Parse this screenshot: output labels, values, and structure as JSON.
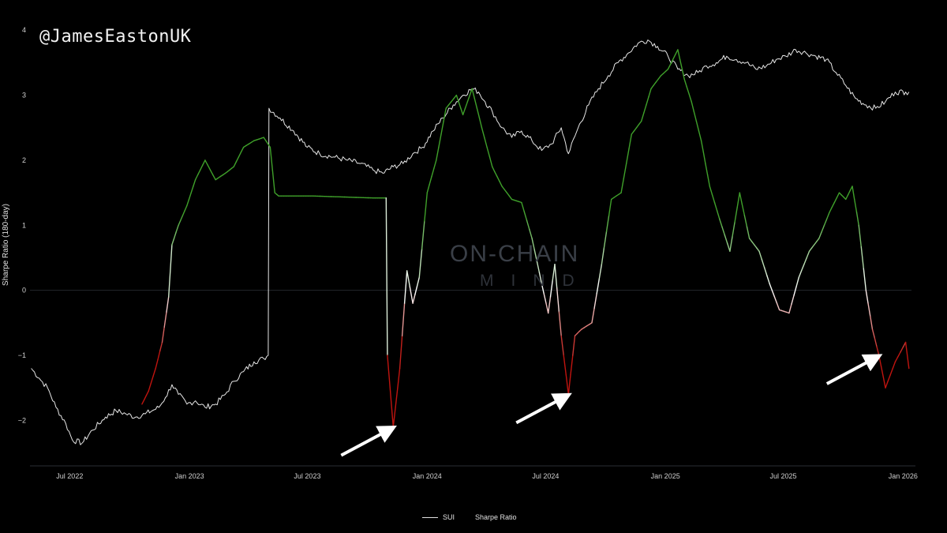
{
  "watermark": {
    "handle": "@JamesEastonUK",
    "brand_title": "ON-CHAIN",
    "brand_subtitle": "MIND"
  },
  "chart_data": {
    "type": "line",
    "title": "",
    "xlabel": "",
    "ylabel": "Sharpe Ratio (180-day)",
    "ylim": [
      -2.7,
      4.1
    ],
    "y_ticks": [
      4,
      3,
      2,
      1,
      0,
      -1,
      -2
    ],
    "x_ticks": [
      "Jul 2022",
      "Jan 2023",
      "Jul 2023",
      "Jan 2024",
      "Jul 2024",
      "Jan 2025",
      "Jul 2025",
      "Jan 2026"
    ],
    "grid": false,
    "legend_position": "bottom",
    "colors": {
      "background": "#000000",
      "sui": "#e6e6e6",
      "positive": "#3fa02a",
      "neutral": "#ffffff",
      "negative": "#c0140f",
      "arrow": "#ffffff"
    },
    "series": [
      {
        "name": "SUI",
        "x": [
          "2022-05-03",
          "2022-05-15",
          "2022-05-28",
          "2022-06-10",
          "2022-06-25",
          "2022-07-05",
          "2022-07-20",
          "2022-08-05",
          "2022-08-25",
          "2022-09-10",
          "2022-09-25",
          "2022-10-10",
          "2022-10-25",
          "2022-11-05",
          "2022-11-15",
          "2022-11-25",
          "2022-12-05",
          "2022-12-15",
          "2022-12-28",
          "2023-01-10",
          "2023-01-25",
          "2023-02-10",
          "2023-02-25",
          "2023-03-10",
          "2023-03-25",
          "2023-04-10",
          "2023-04-25",
          "2023-05-02",
          "2023-05-03",
          "2023-05-20",
          "2023-06-10",
          "2023-07-01",
          "2023-07-20",
          "2023-08-10",
          "2023-09-01",
          "2023-09-20",
          "2023-10-10",
          "2023-10-25",
          "2023-11-10",
          "2023-11-25",
          "2023-12-10",
          "2023-12-25",
          "2024-01-10",
          "2024-01-25",
          "2024-02-10",
          "2024-02-25",
          "2024-03-10",
          "2024-03-20",
          "2024-03-30",
          "2024-04-10",
          "2024-04-25",
          "2024-05-10",
          "2024-05-25",
          "2024-06-10",
          "2024-06-25",
          "2024-07-10",
          "2024-07-25",
          "2024-08-05",
          "2024-08-20",
          "2024-09-05",
          "2024-09-20",
          "2024-10-05",
          "2024-10-20",
          "2024-11-05",
          "2024-11-20",
          "2024-12-05",
          "2024-12-20",
          "2025-01-05",
          "2025-01-20",
          "2025-02-05",
          "2025-02-20",
          "2025-03-05",
          "2025-03-20",
          "2025-04-05",
          "2025-04-20",
          "2025-05-05",
          "2025-05-20",
          "2025-06-05",
          "2025-06-20",
          "2025-07-05",
          "2025-07-20",
          "2025-08-05",
          "2025-08-20",
          "2025-09-05",
          "2025-09-20",
          "2025-10-05",
          "2025-10-20",
          "2025-11-05",
          "2025-11-20",
          "2025-12-05",
          "2025-12-20",
          "2026-01-05",
          "2026-01-10"
        ],
        "values": [
          -1.2,
          -1.35,
          -1.5,
          -1.8,
          -2.05,
          -2.3,
          -2.35,
          -2.15,
          -1.95,
          -1.85,
          -1.9,
          -1.95,
          -1.9,
          -1.85,
          -1.8,
          -1.65,
          -1.45,
          -1.6,
          -1.75,
          -1.7,
          -1.8,
          -1.75,
          -1.6,
          -1.4,
          -1.25,
          -1.1,
          -1.05,
          -1.0,
          2.8,
          2.65,
          2.45,
          2.2,
          2.1,
          2.05,
          2.0,
          1.95,
          1.85,
          1.8,
          1.9,
          1.95,
          2.1,
          2.2,
          2.45,
          2.65,
          2.85,
          3.0,
          3.1,
          3.05,
          2.9,
          2.75,
          2.5,
          2.35,
          2.45,
          2.3,
          2.15,
          2.25,
          2.5,
          2.1,
          2.5,
          2.85,
          3.1,
          3.3,
          3.5,
          3.65,
          3.8,
          3.85,
          3.75,
          3.6,
          3.4,
          3.3,
          3.35,
          3.45,
          3.5,
          3.6,
          3.55,
          3.5,
          3.4,
          3.45,
          3.55,
          3.6,
          3.7,
          3.65,
          3.6,
          3.55,
          3.35,
          3.15,
          2.95,
          2.85,
          2.8,
          2.9,
          3.05,
          3.05,
          3.05
        ]
      },
      {
        "name": "Sharpe Ratio",
        "x": [
          "2022-10-20",
          "2022-10-30",
          "2022-11-10",
          "2022-11-20",
          "2022-11-30",
          "2022-12-05",
          "2022-12-15",
          "2022-12-28",
          "2023-01-10",
          "2023-01-25",
          "2023-02-10",
          "2023-02-25",
          "2023-03-10",
          "2023-03-25",
          "2023-04-10",
          "2023-04-25",
          "2023-05-05",
          "2023-05-12",
          "2023-05-18",
          "2023-06-10",
          "2023-07-10",
          "2023-08-10",
          "2023-09-10",
          "2023-10-10",
          "2023-10-30",
          "2023-11-01",
          "2023-11-10",
          "2023-11-20",
          "2023-12-01",
          "2023-12-10",
          "2023-12-20",
          "2024-01-01",
          "2024-01-15",
          "2024-01-30",
          "2024-02-15",
          "2024-02-25",
          "2024-03-10",
          "2024-03-25",
          "2024-04-10",
          "2024-04-25",
          "2024-05-10",
          "2024-05-25",
          "2024-06-10",
          "2024-06-25",
          "2024-07-05",
          "2024-07-15",
          "2024-07-25",
          "2024-08-05",
          "2024-08-15",
          "2024-08-25",
          "2024-09-10",
          "2024-09-25",
          "2024-10-10",
          "2024-10-25",
          "2024-11-10",
          "2024-11-25",
          "2024-12-10",
          "2024-12-25",
          "2025-01-05",
          "2025-01-20",
          "2025-01-30",
          "2025-02-10",
          "2025-02-25",
          "2025-03-10",
          "2025-03-25",
          "2025-04-10",
          "2025-04-25",
          "2025-05-10",
          "2025-05-25",
          "2025-06-10",
          "2025-06-25",
          "2025-07-10",
          "2025-07-25",
          "2025-08-10",
          "2025-08-25",
          "2025-09-10",
          "2025-09-25",
          "2025-10-05",
          "2025-10-15",
          "2025-10-25",
          "2025-11-05",
          "2025-11-15",
          "2025-11-25",
          "2025-12-05",
          "2025-12-20",
          "2026-01-05",
          "2026-01-10"
        ],
        "values": [
          -1.75,
          -1.55,
          -1.2,
          -0.8,
          -0.1,
          0.7,
          1.0,
          1.3,
          1.7,
          2.0,
          1.7,
          1.8,
          1.9,
          2.2,
          2.3,
          2.35,
          2.2,
          1.5,
          1.45,
          1.45,
          1.45,
          1.44,
          1.43,
          1.42,
          1.42,
          -1.0,
          -2.1,
          -1.2,
          0.3,
          -0.2,
          0.2,
          1.5,
          2.0,
          2.8,
          3.0,
          2.7,
          3.1,
          2.5,
          1.9,
          1.6,
          1.4,
          1.35,
          0.8,
          0.1,
          -0.35,
          0.4,
          -0.7,
          -1.6,
          -0.7,
          -0.6,
          -0.5,
          0.4,
          1.4,
          1.5,
          2.4,
          2.6,
          3.1,
          3.3,
          3.4,
          3.7,
          3.25,
          2.9,
          2.3,
          1.6,
          1.1,
          0.6,
          1.5,
          0.8,
          0.6,
          0.1,
          -0.3,
          -0.35,
          0.2,
          0.6,
          0.8,
          1.2,
          1.5,
          1.4,
          1.6,
          1.0,
          0.0,
          -0.6,
          -1.0,
          -1.5,
          -1.1,
          -0.8,
          -1.2
        ]
      }
    ],
    "annotations": [
      {
        "type": "arrow",
        "points_to": "2023-11-10"
      },
      {
        "type": "arrow",
        "points_to": "2024-08-05"
      },
      {
        "type": "arrow",
        "points_to": "2025-11-25"
      }
    ]
  }
}
